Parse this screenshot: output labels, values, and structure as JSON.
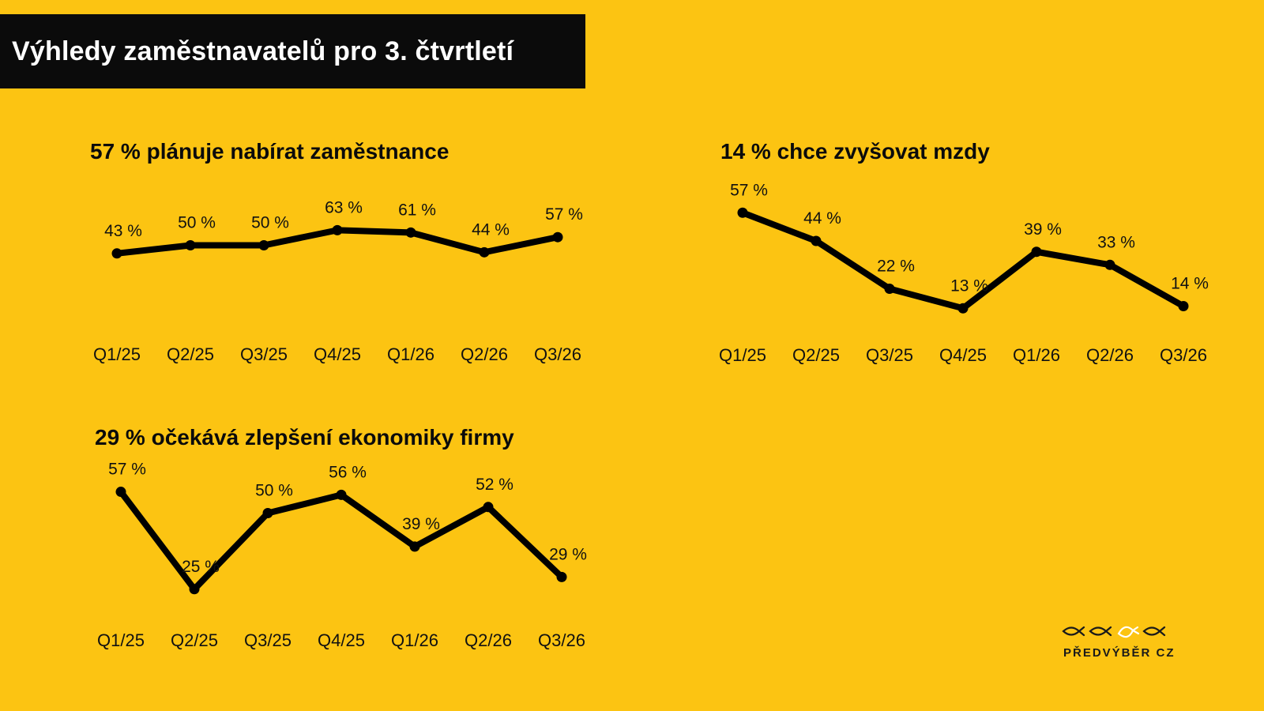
{
  "title": "Výhledy zaměstnavatelů pro 3. čtvrtletí",
  "colors": {
    "background": "#fcc412",
    "title_bar": "#0b0b0b",
    "line": "#000000",
    "logo_fish_highlight": "#ffffff"
  },
  "chart_data": [
    {
      "type": "line",
      "title": "57 % plánuje nabírat zaměstnance",
      "categories": [
        "Q1/25",
        "Q2/25",
        "Q3/25",
        "Q4/25",
        "Q1/26",
        "Q2/26",
        "Q3/26"
      ],
      "values": [
        43,
        50,
        50,
        63,
        61,
        44,
        57
      ],
      "value_labels": [
        "43 %",
        "50 %",
        "50 %",
        "63 %",
        "61 %",
        "44 %",
        "57 %"
      ],
      "grid": false
    },
    {
      "type": "line",
      "title": "14 % chce zvyšovat mzdy",
      "categories": [
        "Q1/25",
        "Q2/25",
        "Q3/25",
        "Q4/25",
        "Q1/26",
        "Q2/26",
        "Q3/26"
      ],
      "values": [
        57,
        44,
        22,
        13,
        39,
        33,
        14
      ],
      "value_labels": [
        "57 %",
        "44 %",
        "22 %",
        "13 %",
        "39 %",
        "33 %",
        "14 %"
      ],
      "grid": false
    },
    {
      "type": "line",
      "title": "29 % očekává zlepšení ekonomiky firmy",
      "categories": [
        "Q1/25",
        "Q2/25",
        "Q3/25",
        "Q4/25",
        "Q1/26",
        "Q2/26",
        "Q3/26"
      ],
      "values": [
        57,
        25,
        50,
        56,
        39,
        52,
        29
      ],
      "value_labels": [
        "57 %",
        "25 %",
        "50 %",
        "56 %",
        "39 %",
        "52 %",
        "29 %"
      ],
      "grid": false
    }
  ],
  "logo": {
    "text": "PŘEDVÝBĚR CZ",
    "icon": "fish-row-icon"
  }
}
